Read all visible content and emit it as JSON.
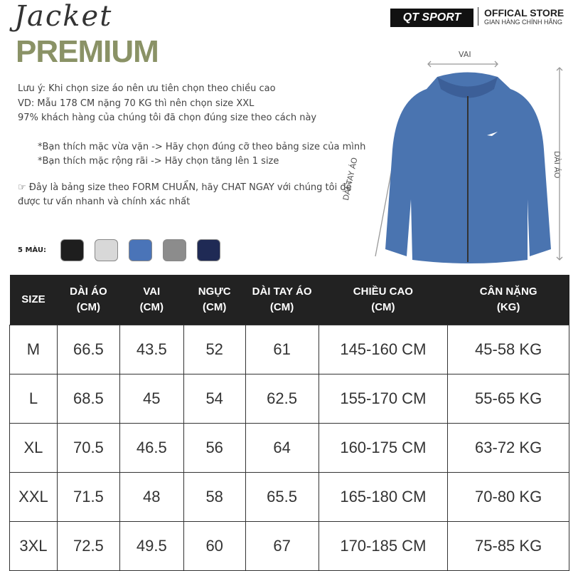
{
  "header": {
    "script_title": "Jacket",
    "title": "PREMIUM",
    "brand": "QT SPORT",
    "store_title": "OFFICAL STORE",
    "store_sub": "GIAN HÀNG CHÍNH HÃNG"
  },
  "notes": {
    "line1": "Lưu ý: Khi chọn size áo nên ưu tiên chọn theo chiều cao",
    "line2": "VD: Mẫu 178 CM nặng 70 KG thì nên chọn size XXL",
    "line3": "97% khách hàng của chúng tôi đã chọn đúng size theo cách này",
    "tip1": "*Bạn thích mặc vừa vặn -> Hãy chọn đúng cỡ theo bảng size của mình",
    "tip2": "*Bạn thích mặc rộng rãi -> Hãy chọn tăng lên 1 size",
    "cta": "Đây là bảng size theo FORM CHUẨN, hãy CHAT NGAY với chúng tôi để được tư vấn nhanh và chính xác nhất"
  },
  "colors": {
    "label": "5 MÀU:",
    "swatches": [
      "#1e1e1e",
      "#d8d8d8",
      "#4a74b8",
      "#8c8c8c",
      "#1f2a55"
    ]
  },
  "diagram": {
    "shoulder": "VAI",
    "sleeve": "DÀI TAY ÁO",
    "length": "DÀI ÁO",
    "jacket_color": "#4a74b0"
  },
  "table": {
    "headers": [
      [
        "SIZE",
        ""
      ],
      [
        "DÀI ÁO",
        "(CM)"
      ],
      [
        "VAI",
        "(CM)"
      ],
      [
        "NGỰC",
        "(CM)"
      ],
      [
        "DÀI TAY ÁO",
        "(CM)"
      ],
      [
        "CHIỀU CAO",
        "(CM)"
      ],
      [
        "CÂN NẶNG",
        "(KG)"
      ]
    ],
    "rows": [
      [
        "M",
        "66.5",
        "43.5",
        "52",
        "61",
        "145-160 CM",
        "45-58 KG"
      ],
      [
        "L",
        "68.5",
        "45",
        "54",
        "62.5",
        "155-170 CM",
        "55-65 KG"
      ],
      [
        "XL",
        "70.5",
        "46.5",
        "56",
        "64",
        "160-175 CM",
        "63-72 KG"
      ],
      [
        "XXL",
        "71.5",
        "48",
        "58",
        "65.5",
        "165-180 CM",
        "70-80 KG"
      ],
      [
        "3XL",
        "72.5",
        "49.5",
        "60",
        "67",
        "170-185 CM",
        "75-85 KG"
      ]
    ]
  }
}
